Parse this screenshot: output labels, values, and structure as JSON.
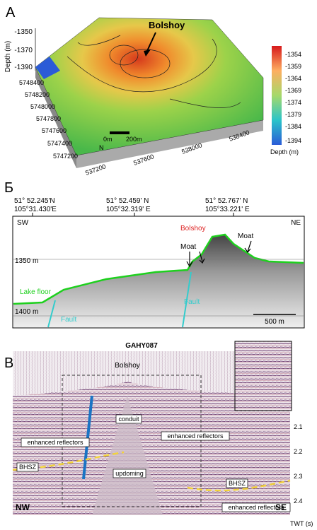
{
  "panel_a": {
    "label": "A",
    "callout": "Bolshoy",
    "depth_axis_title": "Depth (m)",
    "depth_axis_ticks": [
      "-1350",
      "-1370",
      "-1390"
    ],
    "northing_labels": [
      "5748400",
      "5748200",
      "5748000",
      "5747800",
      "5747600",
      "5747400",
      "5747200"
    ],
    "easting_labels": [
      "537200",
      "537600",
      "538000",
      "538400"
    ],
    "scale_bar": [
      "0m",
      "200m"
    ],
    "north": "N",
    "colorbar_ticks": [
      "-1354",
      "-1359",
      "-1364",
      "-1369",
      "-1374",
      "-1379",
      "-1384",
      "-1394"
    ],
    "colorbar_title": "Depth (m)"
  },
  "panel_b": {
    "label": "Б",
    "coordinates": [
      [
        "51° 52.245'N",
        "105°31.430'E"
      ],
      [
        "51° 52.459' N",
        "105°32.319' E"
      ],
      [
        "51° 52.767' N",
        "105°33.221' E"
      ]
    ],
    "left_end": "SW",
    "right_end": "NE",
    "callout": "Bolshoy",
    "moats": [
      "Moat",
      "Moat"
    ],
    "depth_labels": [
      "1350 m",
      "1400 m"
    ],
    "lake_floor": "Lake floor",
    "faults": [
      "Fault",
      "Fault"
    ],
    "scale_bar": "500 m"
  },
  "panel_c": {
    "label": "В",
    "profile": "GAHY087",
    "callout": "Bolshoy",
    "conduit": "conduit",
    "enhanced_reflectors": [
      "enhanced reflectors",
      "enhanced reflectors",
      "enhanced reflectors"
    ],
    "bhsz": [
      "BHSZ",
      "BHSZ"
    ],
    "updoming": "updoming",
    "left_end": "NW",
    "right_end": "SE",
    "twt_title": "TWT (s)",
    "twt_ticks": [
      "2.1",
      "2.2",
      "2.3",
      "2.4"
    ]
  }
}
